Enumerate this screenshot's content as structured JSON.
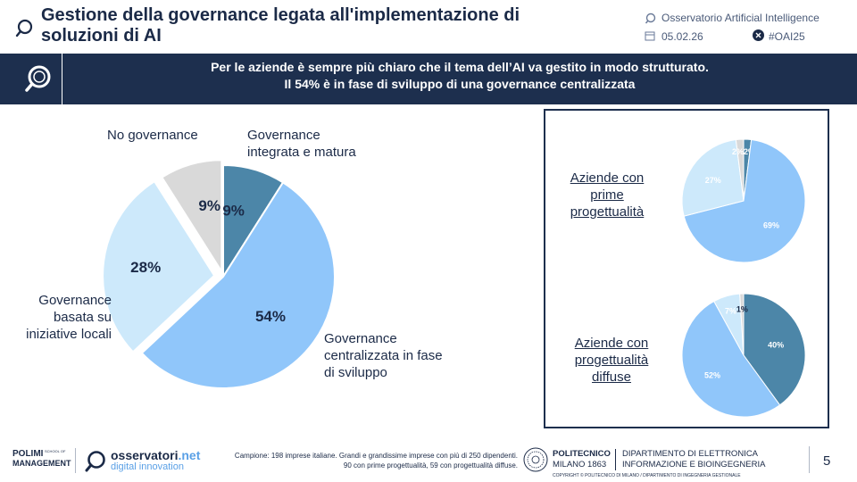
{
  "header": {
    "title": "Gestione della governance legata all'implementazione di soluzioni di AI",
    "observatory": "Osservatorio Artificial Intelligence",
    "date": "05.02.26",
    "hashtag": "#OAI25"
  },
  "banner": {
    "line1": "Per le aziende è sempre più chiaro che il tema dell’AI va gestito in modo strutturato.",
    "line2": "Il 54% è in fase di sviluppo di una governance centralizzata"
  },
  "chart_data": [
    {
      "type": "pie",
      "title": "",
      "labels": [
        "Governance integrata e matura",
        "Governance centralizzata in fase di sviluppo",
        "Governance basata su iniziative locali",
        "No governance"
      ],
      "values": [
        9,
        54,
        28,
        9
      ],
      "value_labels": [
        "9%",
        "54%",
        "28%",
        "9%"
      ],
      "colors": [
        "#4c86a8",
        "#90c6fa",
        "#cde9fb",
        "#d9d9d9"
      ]
    },
    {
      "type": "pie",
      "title": "Aziende con prime progettualità",
      "values": [
        2,
        69,
        27,
        2
      ],
      "value_labels": [
        "2%",
        "69%",
        "27%",
        "2%"
      ],
      "colors": [
        "#4c86a8",
        "#90c6fa",
        "#cde9fb",
        "#d9d9d9"
      ]
    },
    {
      "type": "pie",
      "title": "Aziende con progettualità diffuse",
      "values": [
        40,
        52,
        7,
        1
      ],
      "value_labels": [
        "40%",
        "52%",
        "7%",
        "1%"
      ],
      "colors": [
        "#4c86a8",
        "#90c6fa",
        "#cde9fb",
        "#d9d9d9"
      ]
    }
  ],
  "labels": {
    "no_gov": "No governance",
    "integrata_1": "Governance",
    "integrata_2": "integrata e matura",
    "locali_1": "Governance",
    "locali_2": "basata su",
    "locali_3": "iniziative locali",
    "centr_1": "Governance",
    "centr_2": "centralizzata in fase",
    "centr_3": "di sviluppo",
    "sub1_1": "Aziende con",
    "sub1_2": "prime",
    "sub1_3": "progettualità",
    "sub2_1": "Aziende con",
    "sub2_2": "progettualità",
    "sub2_3": "diffuse"
  },
  "footer": {
    "polimi_1": "POLIMI",
    "polimi_2": "MANAGEMENT",
    "polimi_school": "SCHOOL OF",
    "obs_1": "osservatori",
    "obs_2": ".net",
    "obs_3": "digital innovation",
    "sample_1": "Campione: 198 imprese italiane. Grandi e grandissime imprese con più di 250 dipendenti.",
    "sample_2": "90 con prime progettualità, 59 con progettualità diffuse.",
    "poli_1": "POLITECNICO",
    "poli_2": "MILANO 1863",
    "dept_1": "DIPARTIMENTO DI ELETTRONICA",
    "dept_2": "INFORMAZIONE E BIOINGEGNERIA",
    "copyright": "COPYRIGHT © POLITECNICO DI MILANO / DIPARTIMENTO DI INGEGNERIA GESTIONALE",
    "page": "5"
  }
}
